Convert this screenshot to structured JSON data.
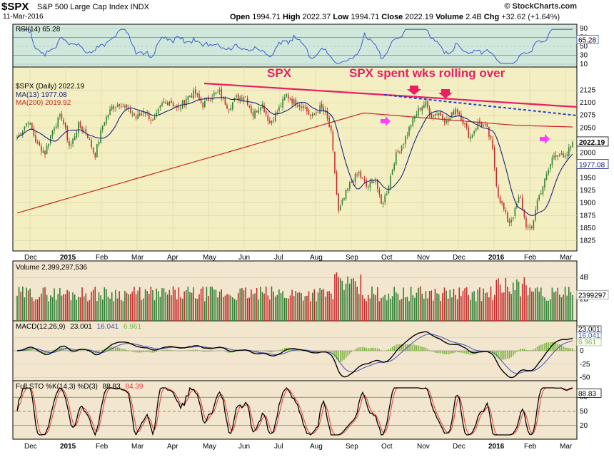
{
  "header": {
    "symbol": "$SPX",
    "name": "S&P 500 Large Cap Index  INDX",
    "date": "11-Mar-2016",
    "open_label": "Open",
    "open": "1994.71",
    "high_label": "High",
    "high": "2022.37",
    "low_label": "Low",
    "low": "1994.71",
    "close_label": "Close",
    "close": "2022.19",
    "volume_label": "Volume",
    "volume": "2.4B",
    "chg_label": "Chg",
    "chg": "+32.62 (+1.64%)",
    "brand": "© StockCharts.com"
  },
  "annotations": {
    "spx_text": "SPX",
    "rolling_text": "SPX spent wks rolling over"
  },
  "colors": {
    "price_bg": "#f4efc2",
    "rsi_bg": "#d0e8dc",
    "volume_bg": "#f3e6cf",
    "up_candle": "#2e7d32",
    "down_candle": "#c62828",
    "ma13": "#1a237e",
    "ma200": "#c62828",
    "trendline": "#e91e63",
    "dashed_trendline": "#1f3ecf",
    "magenta_marker": "#ff3cff",
    "rsi_line": "#3a5bd0",
    "macd_line": "#000000",
    "signal_line": "#3f51b5",
    "histogram": "#7cb342",
    "sto_k": "#000000",
    "sto_d": "#e53935"
  },
  "chart_data": {
    "type": "candlestick",
    "x_axis": [
      "Dec",
      "2015",
      "Feb",
      "Mar",
      "Apr",
      "May",
      "Jun",
      "Jul",
      "Aug",
      "Sep",
      "Oct",
      "Nov",
      "Dec",
      "2016",
      "Feb",
      "Mar"
    ],
    "price_panel": {
      "legend": [
        {
          "label": "$SPX (Daily) 2022.19",
          "color": "#000000"
        },
        {
          "label": "MA(13) 1977.08",
          "color": "#1a237e"
        },
        {
          "label": "MA(200) 2019.92",
          "color": "#c62828"
        }
      ],
      "y_ticks": [
        2125,
        2100,
        2075,
        2050,
        2025,
        2000,
        1975,
        1950,
        1925,
        1900,
        1875,
        1850,
        1825
      ],
      "ylim": [
        1810,
        2140
      ],
      "last_price": "2022.19",
      "last_ma13": "1977.08",
      "close_path": [
        [
          0.0,
          2030
        ],
        [
          0.02,
          2065
        ],
        [
          0.035,
          2020
        ],
        [
          0.05,
          2000
        ],
        [
          0.065,
          2050
        ],
        [
          0.08,
          2075
        ],
        [
          0.095,
          2010
        ],
        [
          0.11,
          2055
        ],
        [
          0.125,
          2040
        ],
        [
          0.14,
          1995
        ],
        [
          0.155,
          2060
        ],
        [
          0.17,
          2090
        ],
        [
          0.185,
          2100
        ],
        [
          0.2,
          2085
        ],
        [
          0.215,
          2070
        ],
        [
          0.23,
          2085
        ],
        [
          0.245,
          2060
        ],
        [
          0.26,
          2095
        ],
        [
          0.275,
          2105
        ],
        [
          0.29,
          2085
        ],
        [
          0.305,
          2110
        ],
        [
          0.32,
          2120
        ],
        [
          0.335,
          2095
        ],
        [
          0.35,
          2115
        ],
        [
          0.365,
          2120
        ],
        [
          0.38,
          2090
        ],
        [
          0.395,
          2110
        ],
        [
          0.41,
          2115
        ],
        [
          0.425,
          2075
        ],
        [
          0.44,
          2100
        ],
        [
          0.455,
          2060
        ],
        [
          0.47,
          2085
        ],
        [
          0.485,
          2115
        ],
        [
          0.5,
          2100
        ],
        [
          0.515,
          2095
        ],
        [
          0.53,
          2070
        ],
        [
          0.545,
          2090
        ],
        [
          0.555,
          2080
        ],
        [
          0.565,
          2040
        ],
        [
          0.572,
          1960
        ],
        [
          0.578,
          1880
        ],
        [
          0.585,
          1900
        ],
        [
          0.6,
          1940
        ],
        [
          0.615,
          1960
        ],
        [
          0.63,
          1930
        ],
        [
          0.645,
          1950
        ],
        [
          0.655,
          1895
        ],
        [
          0.665,
          1920
        ],
        [
          0.68,
          1990
        ],
        [
          0.695,
          2020
        ],
        [
          0.71,
          2060
        ],
        [
          0.725,
          2090
        ],
        [
          0.735,
          2100
        ],
        [
          0.745,
          2075
        ],
        [
          0.76,
          2080
        ],
        [
          0.775,
          2060
        ],
        [
          0.79,
          2090
        ],
        [
          0.8,
          2070
        ],
        [
          0.815,
          2030
        ],
        [
          0.83,
          2060
        ],
        [
          0.845,
          2050
        ],
        [
          0.855,
          2015
        ],
        [
          0.865,
          1920
        ],
        [
          0.875,
          1890
        ],
        [
          0.885,
          1860
        ],
        [
          0.895,
          1880
        ],
        [
          0.905,
          1915
        ],
        [
          0.915,
          1860
        ],
        [
          0.925,
          1840
        ],
        [
          0.935,
          1900
        ],
        [
          0.945,
          1930
        ],
        [
          0.955,
          1960
        ],
        [
          0.965,
          1995
        ],
        [
          0.975,
          2000
        ],
        [
          0.985,
          1985
        ],
        [
          1.0,
          2022
        ]
      ]
    },
    "rsi_panel": {
      "label": "RSI(14) 65.28",
      "value": "65.28",
      "y_ticks": [
        90,
        70,
        50,
        30,
        10
      ]
    },
    "volume_panel": {
      "label": "Volume 2,399,297,536",
      "y_ticks": [
        "4B",
        "2B"
      ],
      "last": "2399297"
    },
    "macd_panel": {
      "label_name": "MACD(12,26,9)",
      "macd": "23.001",
      "signal": "16.041",
      "hist": "6.961",
      "y_ticks": [
        25,
        0,
        -25,
        -50
      ]
    },
    "sto_panel": {
      "label_name": "Full STO %K(14,3) %D(3)",
      "k": "88.83",
      "d": "84.39",
      "y_ticks": [
        80,
        50,
        20
      ]
    }
  }
}
